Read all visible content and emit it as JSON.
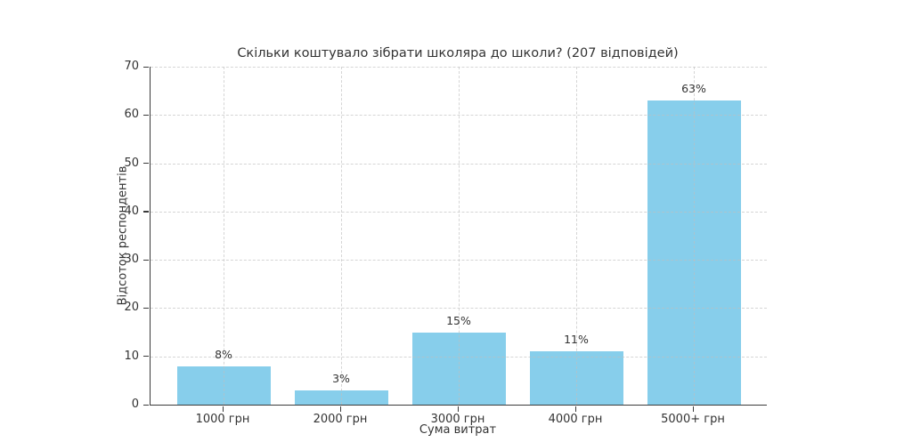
{
  "chart_data": {
    "type": "bar",
    "title": "Скільки коштувало зібрати школяра до школи? (207 відповідей)",
    "categories": [
      "1000 грн",
      "2000 грн",
      "3000 грн",
      "4000 грн",
      "5000+ грн"
    ],
    "values": [
      8,
      3,
      15,
      11,
      63
    ],
    "bar_labels": [
      "8%",
      "3%",
      "15%",
      "11%",
      "63%"
    ],
    "xlabel": "Сума витрат",
    "ylabel": "Відсоток респондентів",
    "ylim": [
      0,
      70
    ],
    "yticks": [
      0,
      10,
      20,
      30,
      40,
      50,
      60,
      70
    ],
    "grid": "dashed, horizontal and vertical",
    "legend": "none",
    "colors": {
      "bar_fill": "#87CEEB",
      "text": "#333333",
      "grid": "#bebebe",
      "axis_spine": "#3a3a3a",
      "background": "#ffffff"
    }
  }
}
